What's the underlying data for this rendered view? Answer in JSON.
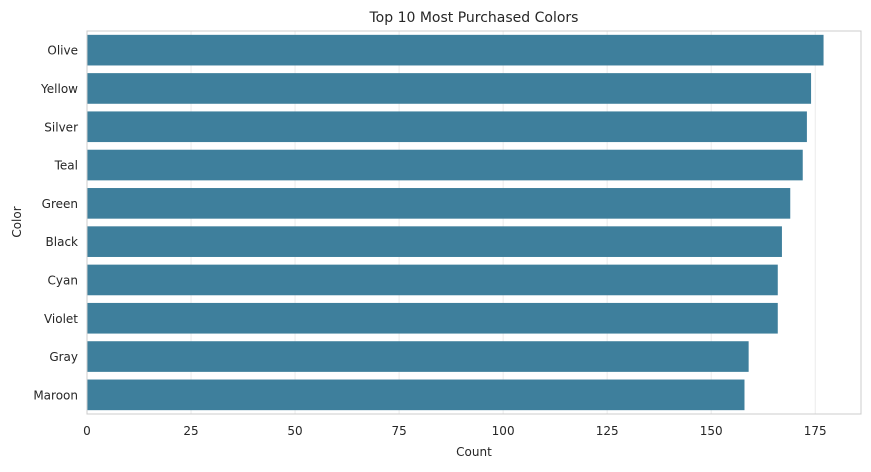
{
  "chart_data": {
    "type": "bar",
    "orientation": "horizontal",
    "title": "Top 10 Most Purchased Colors",
    "xlabel": "Count",
    "ylabel": "Color",
    "categories": [
      "Olive",
      "Yellow",
      "Silver",
      "Teal",
      "Green",
      "Black",
      "Cyan",
      "Violet",
      "Gray",
      "Maroon"
    ],
    "values": [
      177,
      174,
      173,
      172,
      169,
      167,
      166,
      166,
      159,
      158
    ],
    "xlim": [
      0,
      186
    ],
    "xticks": [
      0,
      25,
      50,
      75,
      100,
      125,
      150,
      175
    ],
    "grid": true,
    "bar_color": "#3e7f9c",
    "grid_color": "#ebebeb",
    "frame_color": "#cccccc"
  }
}
